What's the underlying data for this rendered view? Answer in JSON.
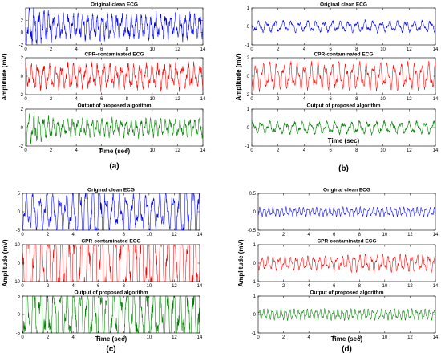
{
  "chart_data": [
    {
      "type": "line",
      "panel_label": "(a)",
      "xlabel": "Time (sec)",
      "ylabel": "Amplitude (mV)",
      "subplots": [
        {
          "title": "Original clean ECG",
          "color": "#0000ff",
          "xlim": [
            0,
            14
          ],
          "ylim": [
            -2,
            4
          ],
          "xticks": [
            0,
            2,
            4,
            6,
            8,
            10,
            12,
            14
          ],
          "yticks": [
            -2,
            0,
            2
          ],
          "signal": {
            "amplitude": 1.1,
            "frequency": 2.6,
            "envelope": "decaying",
            "noise": 0.45,
            "seed": 11
          }
        },
        {
          "title": "CPR-contaminated ECG",
          "color": "#ff0000",
          "xlim": [
            0,
            14
          ],
          "ylim": [
            -2,
            2
          ],
          "xticks": [
            0,
            2,
            4,
            6,
            8,
            10,
            12,
            14
          ],
          "yticks": [
            -2,
            0,
            2
          ],
          "signal": {
            "amplitude": 1.0,
            "frequency": 2.1,
            "envelope": "flat",
            "noise": 0.4,
            "seed": 12
          }
        },
        {
          "title": "Output of proposed algorithm",
          "color": "#008000",
          "xlim": [
            0,
            14
          ],
          "ylim": [
            -2,
            2
          ],
          "xticks": [
            0,
            2,
            4,
            6,
            8,
            10,
            12,
            14
          ],
          "yticks": [
            -2,
            0,
            2
          ],
          "signal": {
            "amplitude": 0.8,
            "frequency": 2.6,
            "envelope": "decaying",
            "noise": 0.4,
            "seed": 13
          }
        }
      ]
    },
    {
      "type": "line",
      "panel_label": "(b)",
      "xlabel": "Time (sec)",
      "ylabel": "Amplitude (mV)",
      "subplots": [
        {
          "title": "Original clean ECG",
          "color": "#0000ff",
          "xlim": [
            0,
            14
          ],
          "ylim": [
            -1,
            1
          ],
          "xticks": [
            0,
            2,
            4,
            6,
            8,
            10,
            12,
            14
          ],
          "yticks": [
            -1,
            0,
            1
          ],
          "signal": {
            "amplitude": 0.45,
            "frequency": 1.6,
            "envelope": "flat",
            "noise": 0.35,
            "seed": 21
          }
        },
        {
          "title": "CPR-contaminated ECG",
          "color": "#ff0000",
          "xlim": [
            0,
            14
          ],
          "ylim": [
            -2,
            2
          ],
          "xticks": [
            0,
            2,
            4,
            6,
            8,
            10,
            12,
            14
          ],
          "yticks": [
            -2,
            0,
            2
          ],
          "signal": {
            "amplitude": 1.1,
            "frequency": 1.9,
            "envelope": "flat",
            "noise": 0.2,
            "seed": 22
          }
        },
        {
          "title": "Output of proposed algorithm",
          "color": "#008000",
          "xlim": [
            0,
            14
          ],
          "ylim": [
            -1,
            1
          ],
          "xticks": [
            0,
            2,
            4,
            6,
            8,
            10,
            12,
            14
          ],
          "yticks": [
            -1,
            0,
            1
          ],
          "signal": {
            "amplitude": 0.5,
            "frequency": 1.6,
            "envelope": "flat",
            "noise": 0.35,
            "seed": 23
          }
        }
      ]
    },
    {
      "type": "line",
      "panel_label": "(c)",
      "xlabel": "Time (sec)",
      "ylabel": "Amplitude (mV)",
      "subplots": [
        {
          "title": "Original clean ECG",
          "color": "#0000ff",
          "xlim": [
            0,
            14
          ],
          "ylim": [
            -5,
            5
          ],
          "xticks": [
            0,
            2,
            4,
            6,
            8,
            10,
            12,
            14
          ],
          "yticks": [
            -5,
            0,
            5
          ],
          "signal": {
            "amplitude": 2.2,
            "frequency": 1.9,
            "envelope": "middle",
            "noise": 0.25,
            "seed": 31
          }
        },
        {
          "title": "CPR-contaminated ECG",
          "color": "#ff0000",
          "xlim": [
            0,
            14
          ],
          "ylim": [
            -10,
            10
          ],
          "xticks": [
            0,
            2,
            4,
            6,
            8,
            10,
            12,
            14
          ],
          "yticks": [
            -10,
            0,
            10
          ],
          "signal": {
            "amplitude": 4.0,
            "frequency": 1.9,
            "envelope": "flat",
            "noise": 0.2,
            "seed": 32
          }
        },
        {
          "title": "Output of proposed algorithm",
          "color": "#008000",
          "xlim": [
            0,
            14
          ],
          "ylim": [
            -5,
            5
          ],
          "xticks": [
            0,
            2,
            4,
            6,
            8,
            10,
            12,
            14
          ],
          "yticks": [
            -5,
            0,
            5
          ],
          "signal": {
            "amplitude": 2.6,
            "frequency": 1.9,
            "envelope": "flat",
            "noise": 0.3,
            "seed": 33
          }
        }
      ]
    },
    {
      "type": "line",
      "panel_label": "(d)",
      "xlabel": "Time (sec)",
      "ylabel": "Amplitude (mV)",
      "subplots": [
        {
          "title": "Original clean ECG",
          "color": "#0000ff",
          "xlim": [
            0,
            14
          ],
          "ylim": [
            -0.5,
            0.5
          ],
          "xticks": [
            0,
            2,
            4,
            6,
            8,
            10,
            12,
            14
          ],
          "yticks": [
            -0.5,
            0,
            0.5
          ],
          "signal": {
            "amplitude": 0.38,
            "frequency": 2.9,
            "envelope": "flat",
            "noise": 0.1,
            "seed": 41
          }
        },
        {
          "title": "CPR-contaminated ECG",
          "color": "#ff0000",
          "xlim": [
            0,
            14
          ],
          "ylim": [
            -1,
            1
          ],
          "xticks": [
            0,
            2,
            4,
            6,
            8,
            10,
            12,
            14
          ],
          "yticks": [
            -1,
            0,
            1
          ],
          "signal": {
            "amplitude": 0.55,
            "frequency": 2.2,
            "envelope": "rising",
            "noise": 0.2,
            "seed": 42
          }
        },
        {
          "title": "Output of proposed algorithm",
          "color": "#008000",
          "xlim": [
            0,
            14
          ],
          "ylim": [
            -1,
            1
          ],
          "xticks": [
            0,
            2,
            4,
            6,
            8,
            10,
            12,
            14
          ],
          "yticks": [
            -1,
            0,
            1
          ],
          "signal": {
            "amplitude": 0.45,
            "frequency": 2.9,
            "envelope": "flat",
            "noise": 0.1,
            "seed": 43
          }
        }
      ]
    }
  ]
}
